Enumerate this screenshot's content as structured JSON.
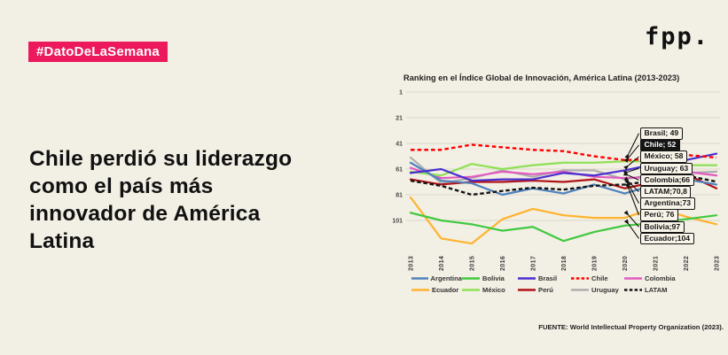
{
  "page": {
    "background": "#F2EFE4"
  },
  "badge": {
    "label": "#DatoDeLaSemana",
    "color": "#EC1A5D"
  },
  "logo": {
    "text": "fpp."
  },
  "headline": {
    "text": "Chile perdió su liderazgo como el país más innovador de América Latina",
    "lines": [
      "Chile perdió su liderazgo",
      "como el país más",
      "innovador de América",
      "Latina"
    ]
  },
  "chart_data": {
    "type": "line",
    "title": "Ranking en el Índice Global de Innovación, América Latina (2013-2023)",
    "x": [
      2013,
      2014,
      2015,
      2016,
      2017,
      2018,
      2019,
      2020,
      2021,
      2022,
      2023
    ],
    "y_axis": {
      "inverted": true,
      "ticks": [
        1,
        21,
        41,
        61,
        81,
        101
      ]
    },
    "grid": true,
    "legend_position": "bottom",
    "series": [
      {
        "name": "Argentina",
        "color": "#4F81BD",
        "dashed": false,
        "values": [
          56,
          70,
          72,
          81,
          76,
          80,
          73,
          80,
          73,
          69,
          73
        ]
      },
      {
        "name": "Bolivia",
        "color": "#3FC93F",
        "dashed": false,
        "values": [
          95,
          101,
          104,
          109,
          106,
          117,
          110,
          105,
          103,
          100,
          97
        ]
      },
      {
        "name": "Brasil",
        "color": "#4A2FD0",
        "dashed": false,
        "values": [
          64,
          61,
          70,
          69,
          69,
          64,
          66,
          62,
          57,
          54,
          49
        ]
      },
      {
        "name": "Chile",
        "color": "#FF0000",
        "dashed": true,
        "values": [
          46,
          46,
          42,
          44,
          46,
          47,
          51,
          54,
          53,
          50,
          52
        ]
      },
      {
        "name": "Colombia",
        "color": "#E35ABF",
        "dashed": false,
        "values": [
          60,
          68,
          67,
          63,
          65,
          63,
          67,
          68,
          67,
          63,
          66
        ]
      },
      {
        "name": "Ecuador",
        "color": "#FFB32E",
        "dashed": false,
        "values": [
          83,
          115,
          119,
          100,
          92,
          97,
          99,
          99,
          91,
          98,
          104
        ]
      },
      {
        "name": "México",
        "color": "#8FE055",
        "dashed": false,
        "values": [
          63,
          66,
          57,
          61,
          58,
          56,
          56,
          55,
          55,
          58,
          58
        ]
      },
      {
        "name": "Perú",
        "color": "#B01217",
        "dashed": false,
        "values": [
          69,
          73,
          71,
          71,
          70,
          71,
          69,
          76,
          71,
          65,
          76
        ]
      },
      {
        "name": "Uruguay",
        "color": "#ACAEAE",
        "dashed": false,
        "values": [
          52,
          72,
          68,
          62,
          67,
          62,
          62,
          69,
          65,
          64,
          63
        ]
      },
      {
        "name": "LATAM",
        "color": "#141414",
        "dashed": true,
        "values": [
          70,
          74,
          81,
          78,
          75.5,
          77,
          74,
          73,
          70,
          66,
          70.8
        ]
      }
    ],
    "end_labels": [
      {
        "series": "Brasil",
        "label": "Brasil; 49",
        "highlight": false
      },
      {
        "series": "Chile",
        "label": "Chile; 52",
        "highlight": true
      },
      {
        "series": "México",
        "label": "México; 58",
        "highlight": false
      },
      {
        "series": "Uruguay",
        "label": "Uruguay; 63",
        "highlight": false
      },
      {
        "series": "Colombia",
        "label": "Colombia;66",
        "highlight": false
      },
      {
        "series": "LATAM",
        "label": "LATAM;70,8",
        "highlight": false
      },
      {
        "series": "Argentina",
        "label": "Argentina;73",
        "highlight": false
      },
      {
        "series": "Perú",
        "label": "Perú; 76",
        "highlight": false
      },
      {
        "series": "Bolivia",
        "label": "Bolivia;97",
        "highlight": false
      },
      {
        "series": "Ecuador",
        "label": "Ecuador;104",
        "highlight": false
      }
    ],
    "source": "FUENTE: World Intellectual Property Organization (2023)."
  }
}
